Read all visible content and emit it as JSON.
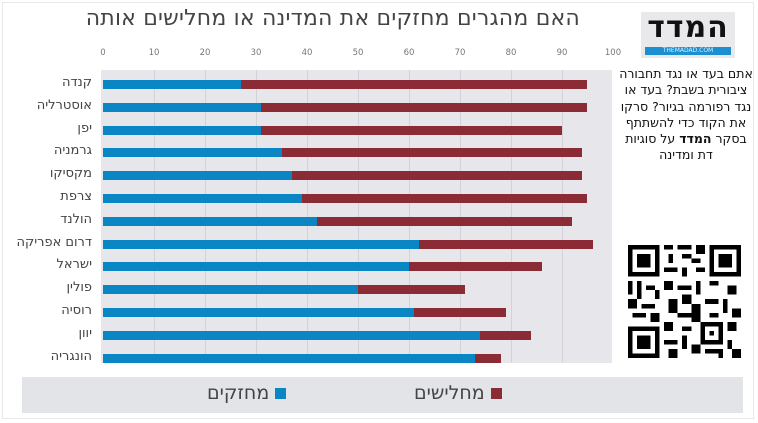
{
  "header": {
    "title": "האם מהגרים מחזקים את המדינה או מחלישים אותה"
  },
  "logo": {
    "word": "המדד",
    "url_text": "THEMADAD.COM"
  },
  "promo": {
    "text_before": "אתם בעד או נגד תחבורה ציבורית בשבת? בעד או נגד רפורמה בגיור? סרקו את הקוד כדי להשתתף בסקר ",
    "brand": "המדד",
    "text_after": " על סוגיות דת ומדינה"
  },
  "qr": {
    "icon": "qr-code-icon"
  },
  "colors": {
    "strengthen": "#0a86c4",
    "weaken": "#8b2b35",
    "plot_bg": "#e7e7eb",
    "legend_bg": "#e3e4e8"
  },
  "legend": {
    "strengthen_label": "מחזקים",
    "weaken_label": "מחלישים"
  },
  "chart_data": {
    "type": "bar",
    "orientation": "horizontal",
    "stacked": true,
    "title": "האם מהגרים מחזקים את המדינה או מחלישים אותה",
    "xlabel": "",
    "ylabel": "",
    "xlim": [
      0,
      100
    ],
    "x_ticks": [
      0,
      10,
      20,
      30,
      40,
      50,
      60,
      70,
      80,
      90,
      100
    ],
    "grid": true,
    "legend_position": "bottom",
    "categories": [
      "קנדה",
      "אוסטרליה",
      "יפן",
      "גרמניה",
      "מקסיקו",
      "צרפת",
      "הולנד",
      "דרום אפריקה",
      "ישראל",
      "פולין",
      "רוסיה",
      "יוון",
      "הונגריה"
    ],
    "series": [
      {
        "name": "מחזקים",
        "color": "#0a86c4",
        "values": [
          27,
          31,
          31,
          35,
          37,
          39,
          42,
          62,
          60,
          50,
          61,
          74,
          73
        ]
      },
      {
        "name": "מחלישים",
        "color": "#8b2b35",
        "values": [
          68,
          64,
          59,
          59,
          57,
          56,
          50,
          34,
          26,
          21,
          18,
          10,
          5
        ]
      }
    ]
  }
}
